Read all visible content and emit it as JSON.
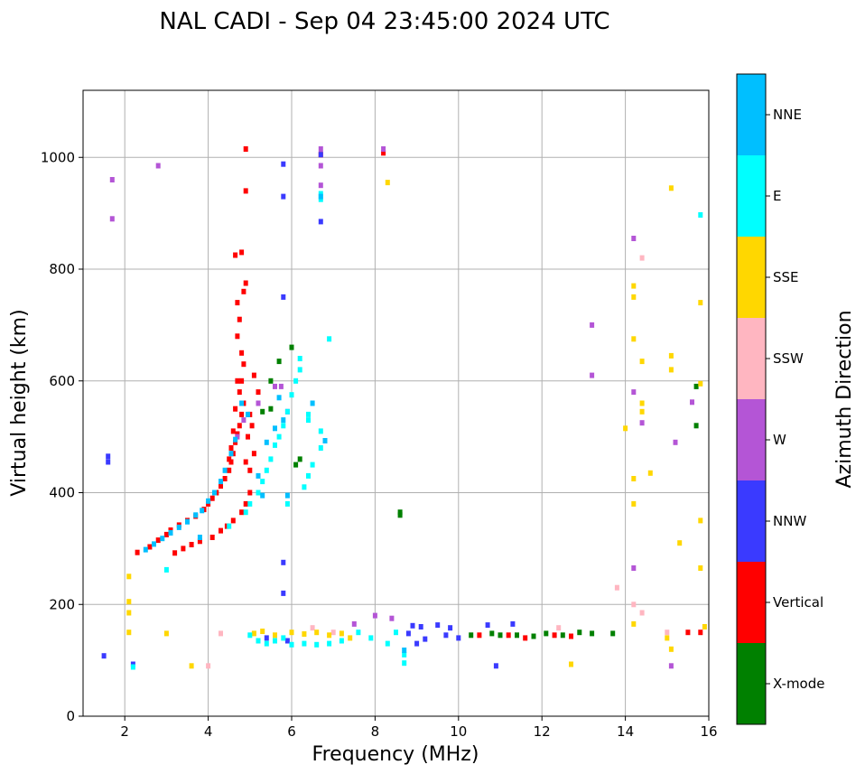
{
  "chart_data": {
    "type": "scatter",
    "title": "NAL CADI - Sep 04 23:45:00 2024 UTC",
    "xlabel": "Frequency (MHz)",
    "ylabel": "Virtual height (km)",
    "xlim": [
      1,
      16
    ],
    "ylim": [
      0,
      1120
    ],
    "xticks": [
      2,
      4,
      6,
      8,
      10,
      12,
      14,
      16
    ],
    "yticks": [
      0,
      200,
      400,
      600,
      800,
      1000
    ],
    "grid": true,
    "colorbar": {
      "label": "Azimuth Direction",
      "categories": [
        {
          "name": "X-mode",
          "color": "#008000"
        },
        {
          "name": "Vertical",
          "color": "#ff0000"
        },
        {
          "name": "NNW",
          "color": "#3a3aff"
        },
        {
          "name": "W",
          "color": "#b455d6"
        },
        {
          "name": "SSW",
          "color": "#ffb6c1"
        },
        {
          "name": "SSE",
          "color": "#ffd700"
        },
        {
          "name": "E",
          "color": "#00ffff"
        },
        {
          "name": "NNE",
          "color": "#00bfff"
        }
      ]
    },
    "series": [
      {
        "name": "Vertical",
        "color": "#ff0000",
        "points": [
          [
            2.3,
            293
          ],
          [
            2.6,
            303
          ],
          [
            2.8,
            315
          ],
          [
            3.0,
            325
          ],
          [
            3.1,
            333
          ],
          [
            3.3,
            342
          ],
          [
            3.5,
            350
          ],
          [
            3.7,
            358
          ],
          [
            3.9,
            370
          ],
          [
            4.0,
            380
          ],
          [
            4.1,
            390
          ],
          [
            4.2,
            400
          ],
          [
            4.3,
            412
          ],
          [
            4.4,
            425
          ],
          [
            4.5,
            440
          ],
          [
            4.55,
            455
          ],
          [
            4.6,
            470
          ],
          [
            4.65,
            490
          ],
          [
            4.7,
            505
          ],
          [
            4.75,
            520
          ],
          [
            4.8,
            540
          ],
          [
            4.85,
            560
          ],
          [
            4.75,
            580
          ],
          [
            4.8,
            600
          ],
          [
            4.85,
            630
          ],
          [
            4.8,
            650
          ],
          [
            4.7,
            680
          ],
          [
            4.75,
            710
          ],
          [
            4.7,
            740
          ],
          [
            4.85,
            760
          ],
          [
            4.9,
            775
          ],
          [
            4.8,
            830
          ],
          [
            4.65,
            825
          ],
          [
            4.9,
            1015
          ],
          [
            4.9,
            940
          ],
          [
            3.2,
            292
          ],
          [
            3.4,
            300
          ],
          [
            3.6,
            307
          ],
          [
            3.8,
            313
          ],
          [
            4.1,
            320
          ],
          [
            4.3,
            332
          ],
          [
            4.45,
            340
          ],
          [
            4.6,
            350
          ],
          [
            4.8,
            365
          ],
          [
            4.9,
            380
          ],
          [
            5.0,
            400
          ],
          [
            5.0,
            440
          ],
          [
            5.1,
            470
          ],
          [
            5.05,
            520
          ],
          [
            5.2,
            580
          ],
          [
            5.1,
            610
          ],
          [
            5.0,
            540
          ],
          [
            4.95,
            500
          ],
          [
            4.9,
            455
          ],
          [
            4.5,
            460
          ],
          [
            4.55,
            480
          ],
          [
            4.6,
            510
          ],
          [
            4.65,
            550
          ],
          [
            4.7,
            600
          ],
          [
            6.7,
            1005
          ],
          [
            8.2,
            1008
          ],
          [
            10.5,
            145
          ],
          [
            11.2,
            145
          ],
          [
            11.6,
            140
          ],
          [
            12.3,
            145
          ],
          [
            12.7,
            143
          ],
          [
            15.5,
            150
          ],
          [
            15.8,
            150
          ]
        ]
      },
      {
        "name": "X-mode",
        "color": "#008000",
        "points": [
          [
            10.3,
            145
          ],
          [
            10.8,
            148
          ],
          [
            11.0,
            145
          ],
          [
            11.4,
            145
          ],
          [
            11.8,
            143
          ],
          [
            12.1,
            148
          ],
          [
            12.5,
            145
          ],
          [
            12.9,
            150
          ],
          [
            13.2,
            148
          ],
          [
            13.7,
            148
          ],
          [
            8.6,
            365
          ],
          [
            8.6,
            360
          ],
          [
            6.2,
            460
          ],
          [
            6.1,
            450
          ],
          [
            5.5,
            550
          ],
          [
            5.3,
            545
          ],
          [
            5.5,
            600
          ],
          [
            6.0,
            660
          ],
          [
            15.7,
            590
          ],
          [
            15.7,
            520
          ],
          [
            5.7,
            635
          ]
        ]
      },
      {
        "name": "NNW",
        "color": "#3a3aff",
        "points": [
          [
            1.5,
            108
          ],
          [
            2.2,
            93
          ],
          [
            8.9,
            162
          ],
          [
            9.1,
            160
          ],
          [
            9.5,
            163
          ],
          [
            9.8,
            158
          ],
          [
            9.2,
            138
          ],
          [
            8.8,
            148
          ],
          [
            9.0,
            130
          ],
          [
            9.7,
            145
          ],
          [
            10.0,
            140
          ],
          [
            10.7,
            163
          ],
          [
            11.3,
            165
          ],
          [
            10.9,
            90
          ],
          [
            6.7,
            1005
          ],
          [
            6.7,
            885
          ],
          [
            5.8,
            988
          ],
          [
            5.8,
            930
          ],
          [
            5.8,
            750
          ],
          [
            5.8,
            275
          ],
          [
            5.8,
            220
          ],
          [
            1.6,
            465
          ],
          [
            1.6,
            455
          ],
          [
            5.4,
            140
          ],
          [
            5.9,
            135
          ]
        ]
      },
      {
        "name": "W",
        "color": "#b455d6",
        "points": [
          [
            1.7,
            960
          ],
          [
            1.7,
            890
          ],
          [
            2.8,
            985
          ],
          [
            6.7,
            1015
          ],
          [
            6.7,
            985
          ],
          [
            6.7,
            950
          ],
          [
            8.2,
            1015
          ],
          [
            4.7,
            500
          ],
          [
            4.85,
            530
          ],
          [
            5.2,
            560
          ],
          [
            5.6,
            590
          ],
          [
            5.75,
            590
          ],
          [
            5.9,
            545
          ],
          [
            13.2,
            700
          ],
          [
            13.2,
            610
          ],
          [
            14.2,
            855
          ],
          [
            14.2,
            580
          ],
          [
            14.4,
            525
          ],
          [
            15.2,
            490
          ],
          [
            15.6,
            562
          ],
          [
            14.2,
            265
          ],
          [
            15.1,
            90
          ],
          [
            7.5,
            165
          ],
          [
            8.0,
            180
          ],
          [
            8.4,
            175
          ]
        ]
      },
      {
        "name": "SSW",
        "color": "#ffb6c1",
        "points": [
          [
            14.2,
            200
          ],
          [
            14.4,
            820
          ],
          [
            14.4,
            185
          ],
          [
            13.8,
            230
          ],
          [
            15.0,
            150
          ],
          [
            12.4,
            158
          ],
          [
            4.0,
            90
          ],
          [
            4.3,
            148
          ],
          [
            6.5,
            158
          ],
          [
            7.0,
            150
          ]
        ]
      },
      {
        "name": "SSE",
        "color": "#ffd700",
        "points": [
          [
            2.1,
            250
          ],
          [
            2.1,
            205
          ],
          [
            2.1,
            185
          ],
          [
            2.1,
            150
          ],
          [
            3.0,
            148
          ],
          [
            3.6,
            90
          ],
          [
            8.3,
            955
          ],
          [
            15.1,
            945
          ],
          [
            14.2,
            770
          ],
          [
            14.2,
            750
          ],
          [
            14.2,
            675
          ],
          [
            14.4,
            635
          ],
          [
            15.1,
            645
          ],
          [
            15.1,
            620
          ],
          [
            14.4,
            545
          ],
          [
            14.4,
            560
          ],
          [
            14.0,
            515
          ],
          [
            14.2,
            425
          ],
          [
            14.2,
            380
          ],
          [
            14.6,
            435
          ],
          [
            15.8,
            740
          ],
          [
            15.8,
            595
          ],
          [
            15.8,
            350
          ],
          [
            15.3,
            310
          ],
          [
            15.8,
            265
          ],
          [
            14.2,
            165
          ],
          [
            15.1,
            120
          ],
          [
            15.9,
            160
          ],
          [
            12.7,
            93
          ],
          [
            15.0,
            140
          ],
          [
            5.1,
            148
          ],
          [
            5.3,
            152
          ],
          [
            5.6,
            145
          ],
          [
            6.0,
            150
          ],
          [
            6.3,
            147
          ],
          [
            6.6,
            150
          ],
          [
            6.9,
            145
          ],
          [
            7.2,
            148
          ],
          [
            7.4,
            140
          ]
        ]
      },
      {
        "name": "E",
        "color": "#00ffff",
        "points": [
          [
            5.0,
            145
          ],
          [
            5.2,
            135
          ],
          [
            5.4,
            130
          ],
          [
            5.6,
            135
          ],
          [
            5.8,
            140
          ],
          [
            6.0,
            128
          ],
          [
            6.3,
            130
          ],
          [
            6.6,
            128
          ],
          [
            6.9,
            130
          ],
          [
            7.2,
            135
          ],
          [
            7.6,
            150
          ],
          [
            7.9,
            140
          ],
          [
            8.3,
            130
          ],
          [
            8.7,
            110
          ],
          [
            8.7,
            95
          ],
          [
            8.5,
            150
          ],
          [
            4.5,
            340
          ],
          [
            4.9,
            365
          ],
          [
            5.0,
            380
          ],
          [
            5.2,
            400
          ],
          [
            5.3,
            420
          ],
          [
            5.4,
            440
          ],
          [
            5.5,
            460
          ],
          [
            5.6,
            485
          ],
          [
            5.7,
            500
          ],
          [
            5.8,
            520
          ],
          [
            5.9,
            545
          ],
          [
            6.0,
            575
          ],
          [
            6.1,
            600
          ],
          [
            6.2,
            620
          ],
          [
            6.4,
            530
          ],
          [
            6.4,
            540
          ],
          [
            6.7,
            510
          ],
          [
            6.7,
            480
          ],
          [
            6.9,
            675
          ],
          [
            6.2,
            640
          ],
          [
            6.5,
            450
          ],
          [
            6.4,
            430
          ],
          [
            6.3,
            410
          ],
          [
            5.9,
            380
          ],
          [
            3.0,
            262
          ],
          [
            2.2,
            88
          ],
          [
            15.8,
            897
          ],
          [
            6.7,
            935
          ],
          [
            6.7,
            925
          ]
        ]
      },
      {
        "name": "NNE",
        "color": "#00bfff",
        "points": [
          [
            2.5,
            298
          ],
          [
            2.7,
            308
          ],
          [
            2.9,
            318
          ],
          [
            3.1,
            328
          ],
          [
            3.3,
            338
          ],
          [
            3.5,
            348
          ],
          [
            3.7,
            360
          ],
          [
            3.85,
            368
          ],
          [
            4.0,
            385
          ],
          [
            4.15,
            400
          ],
          [
            4.3,
            420
          ],
          [
            4.4,
            440
          ],
          [
            4.55,
            470
          ],
          [
            4.65,
            495
          ],
          [
            4.8,
            560
          ],
          [
            4.95,
            540
          ],
          [
            5.2,
            430
          ],
          [
            5.4,
            490
          ],
          [
            5.6,
            515
          ],
          [
            5.8,
            530
          ],
          [
            5.7,
            570
          ],
          [
            6.5,
            560
          ],
          [
            6.8,
            493
          ],
          [
            5.9,
            395
          ],
          [
            5.3,
            395
          ],
          [
            3.8,
            320
          ],
          [
            6.7,
            930
          ],
          [
            8.7,
            118
          ]
        ]
      }
    ]
  }
}
